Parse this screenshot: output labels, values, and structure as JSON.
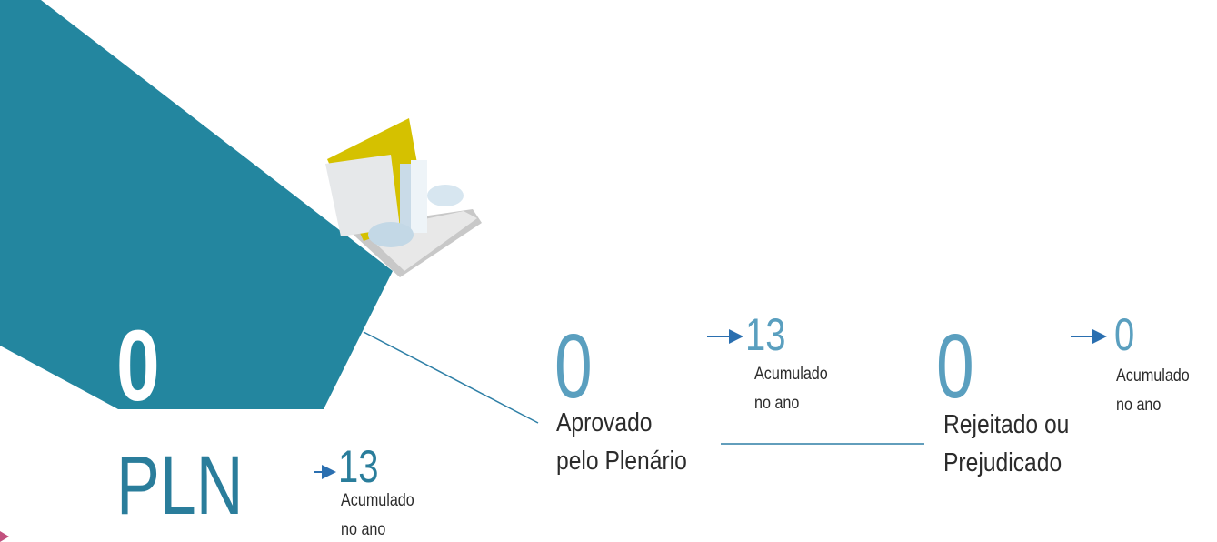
{
  "total": {
    "value": 0,
    "label": "PLN",
    "accumulated": 13,
    "accumulated_label": [
      "Acumulado",
      "no ano"
    ]
  },
  "stages": [
    {
      "value": 0,
      "label": [
        "Aprovado",
        "pelo Plenário"
      ],
      "accumulated": 13,
      "accumulated_label": [
        "Acumulado",
        "no ano"
      ]
    },
    {
      "value": 0,
      "label": [
        "Rejeitado ou",
        "Prejudicado"
      ],
      "accumulated": 0,
      "accumulated_label": [
        "Acumulado",
        "no ano"
      ]
    }
  ]
}
